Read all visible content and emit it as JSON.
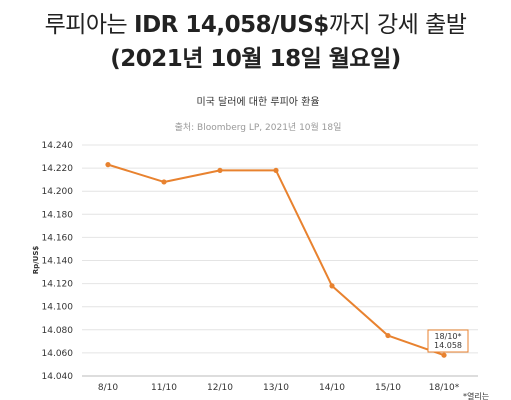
{
  "headline": {
    "line1_pre": "루피아는 ",
    "line1_bold": "IDR 14,058/US$",
    "line1_post": "까지 강세 출발",
    "line2": "(2021년 10월 18일 월요일)"
  },
  "chart_data": {
    "type": "line",
    "title": "미국 달러에 대한 루피아 환율",
    "subtitle": "출처: Bloomberg LP, 2021년 10월 18일",
    "xlabel": "",
    "ylabel": "Rp/US$",
    "categories": [
      "8/10",
      "11/10",
      "12/10",
      "13/10",
      "14/10",
      "15/10",
      "18/10*"
    ],
    "series": [
      {
        "values": [
          14223,
          14208,
          14218,
          14218,
          14118,
          14075,
          14058
        ]
      }
    ],
    "ylim": [
      14040,
      14240
    ],
    "yticks": [
      "14.240",
      "14.220",
      "14.200",
      "14.180",
      "14.160",
      "14.140",
      "14.120",
      "14.100",
      "14.080",
      "14.060",
      "14.040"
    ],
    "grid": true,
    "annotation": {
      "line1": "18/10*",
      "line2": "14.058"
    },
    "footnote": "*열리는",
    "line_color": "#e8822f"
  }
}
